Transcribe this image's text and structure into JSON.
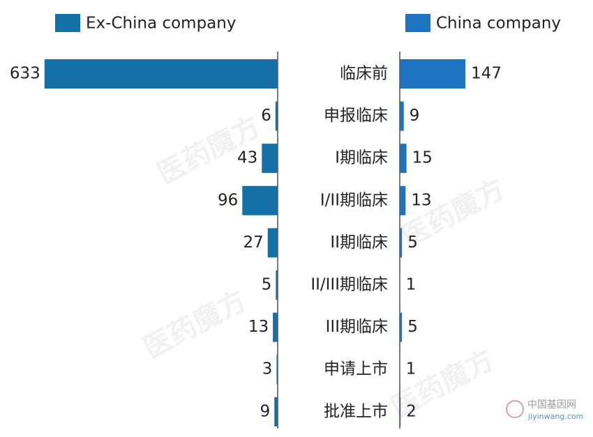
{
  "chart_data": {
    "type": "butterfly",
    "categories": [
      "临床前",
      "申报临床",
      "I期临床",
      "I/II期临床",
      "II期临床",
      "II/III期临床",
      "III期临床",
      "申请上市",
      "批准上市"
    ],
    "series": [
      {
        "name": "Ex-China company",
        "color": "#1570a6",
        "values": [
          633,
          6,
          43,
          96,
          27,
          5,
          13,
          3,
          9
        ]
      },
      {
        "name": "China company",
        "color": "#1e73be",
        "values": [
          147,
          9,
          15,
          13,
          5,
          1,
          5,
          1,
          2
        ]
      }
    ],
    "watermarks": [
      "医药魔方",
      "中国基因网",
      "jiyinwang.com"
    ]
  }
}
